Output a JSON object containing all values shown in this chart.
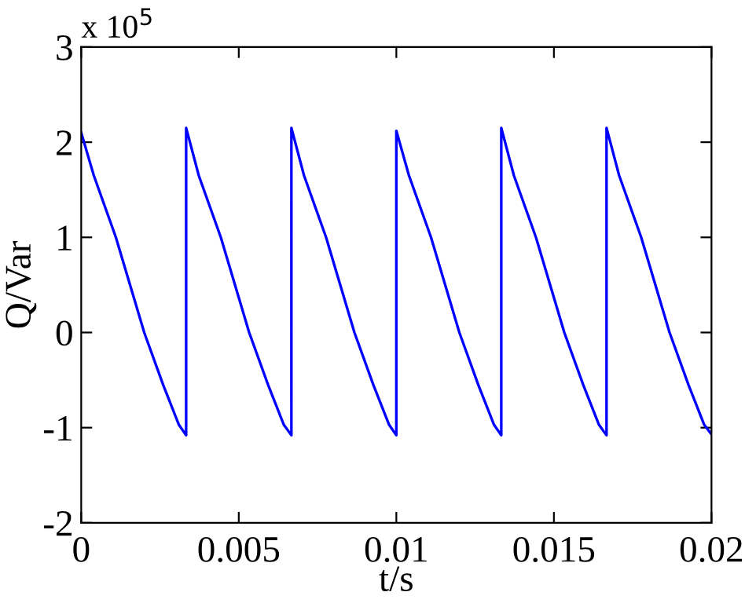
{
  "chart_data": {
    "type": "line",
    "xlabel": "t/s",
    "ylabel": "Q/Var",
    "annotations": [
      "x 10$^{5}$"
    ],
    "x": [
      0,
      0.0004,
      0.0011,
      0.002,
      0.0026,
      0.0031,
      0.00333,
      0.00333,
      0.00373,
      0.00443,
      0.00533,
      0.00593,
      0.00643,
      0.00667,
      0.00667,
      0.00707,
      0.00777,
      0.00867,
      0.00927,
      0.00977,
      0.01,
      0.01,
      0.0104,
      0.0111,
      0.012,
      0.0126,
      0.0131,
      0.01333,
      0.01333,
      0.01373,
      0.01443,
      0.01533,
      0.01593,
      0.01643,
      0.01667,
      0.01667,
      0.01707,
      0.01777,
      0.01867,
      0.01927,
      0.01977,
      0.02
    ],
    "series": [
      {
        "color": "#0000ff",
        "values": [
          2.1,
          1.65,
          1.0,
          0.0,
          -0.55,
          -0.97,
          -1.08,
          2.15,
          1.65,
          1.0,
          0.0,
          -0.55,
          -0.97,
          -1.08,
          2.15,
          1.65,
          1.0,
          0.0,
          -0.55,
          -0.97,
          -1.08,
          2.12,
          1.65,
          1.0,
          0.0,
          -0.55,
          -0.97,
          -1.08,
          2.15,
          1.65,
          1.0,
          0.0,
          -0.55,
          -0.97,
          -1.08,
          2.15,
          1.65,
          1.0,
          0.0,
          -0.55,
          -0.97,
          -1.07
        ]
      }
    ],
    "xlim": [
      0,
      0.02
    ],
    "xticks": [
      0,
      0.005,
      0.01,
      0.015,
      0.02
    ],
    "ylim": [
      -2,
      3
    ],
    "yticks": [
      -2,
      -1,
      0,
      1,
      2,
      3
    ],
    "grid": false,
    "legend": false,
    "marker": "none",
    "line_style": "solid"
  }
}
